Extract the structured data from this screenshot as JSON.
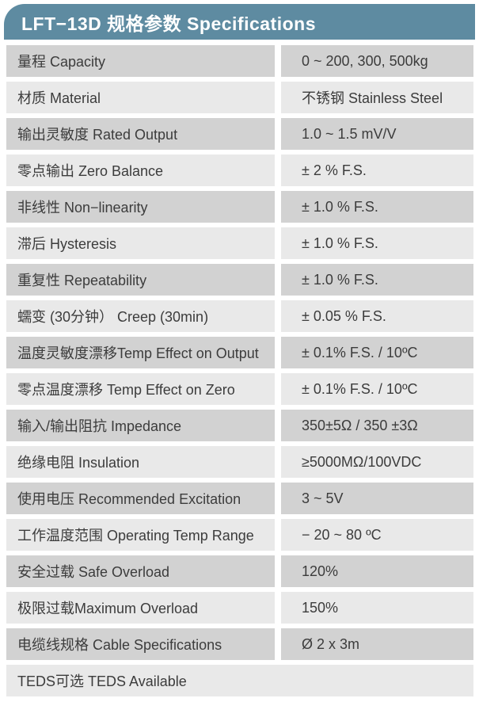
{
  "header": {
    "title": "LFT−13D 规格参数 Specifications"
  },
  "colors": {
    "header_bg": "#5e8ba1",
    "header_text": "#ffffff",
    "row_dark": "#d2d2d2",
    "row_light": "#e9e9e9",
    "text": "#3c3c3c"
  },
  "table": {
    "rows": [
      {
        "label": "量程 Capacity",
        "value": "0 ~ 200, 300, 500kg",
        "shade": "dark",
        "full_width": false
      },
      {
        "label": "材质 Material",
        "value": "不锈钢 Stainless Steel",
        "shade": "light",
        "full_width": false
      },
      {
        "label": "输出灵敏度 Rated Output",
        "value": "1.0 ~ 1.5 mV/V",
        "shade": "dark",
        "full_width": false
      },
      {
        "label": "零点输出 Zero Balance",
        "value": "± 2 % F.S.",
        "shade": "light",
        "full_width": false
      },
      {
        "label": "非线性 Non−linearity",
        "value": "± 1.0 % F.S.",
        "shade": "dark",
        "full_width": false
      },
      {
        "label": "滞后 Hysteresis",
        "value": "± 1.0 % F.S.",
        "shade": "light",
        "full_width": false
      },
      {
        "label": "重复性 Repeatability",
        "value": "± 1.0 % F.S.",
        "shade": "dark",
        "full_width": false
      },
      {
        "label": "蠕变 (30分钟） Creep (30min)",
        "value": "± 0.05 % F.S.",
        "shade": "light",
        "full_width": false
      },
      {
        "label": "温度灵敏度漂移Temp Effect on Output",
        "value": "± 0.1% F.S. / 10ºC",
        "shade": "dark",
        "full_width": false
      },
      {
        "label": "零点温度漂移 Temp Effect on Zero",
        "value": "± 0.1% F.S. / 10ºC",
        "shade": "light",
        "full_width": false
      },
      {
        "label": "输入/输出阻抗 Impedance",
        "value": "350±5Ω / 350 ±3Ω",
        "shade": "dark",
        "full_width": false
      },
      {
        "label": "绝缘电阻 Insulation",
        "value": "≥5000MΩ/100VDC",
        "shade": "light",
        "full_width": false
      },
      {
        "label": "使用电压 Recommended Excitation",
        "value": "3 ~ 5V",
        "shade": "dark",
        "full_width": false
      },
      {
        "label": "工作温度范围 Operating Temp Range",
        "value": "− 20 ~ 80 ºC",
        "shade": "light",
        "full_width": false
      },
      {
        "label": "安全过载 Safe Overload",
        "value": "120%",
        "shade": "dark",
        "full_width": false
      },
      {
        "label": "极限过载Maximum Overload",
        "value": "150%",
        "shade": "light",
        "full_width": false
      },
      {
        "label": "电缆线规格 Cable Specifications",
        "value": "Ø 2 x 3m",
        "shade": "dark",
        "full_width": false
      },
      {
        "label": "TEDS可选 TEDS Available",
        "value": "",
        "shade": "light",
        "full_width": true
      }
    ]
  }
}
